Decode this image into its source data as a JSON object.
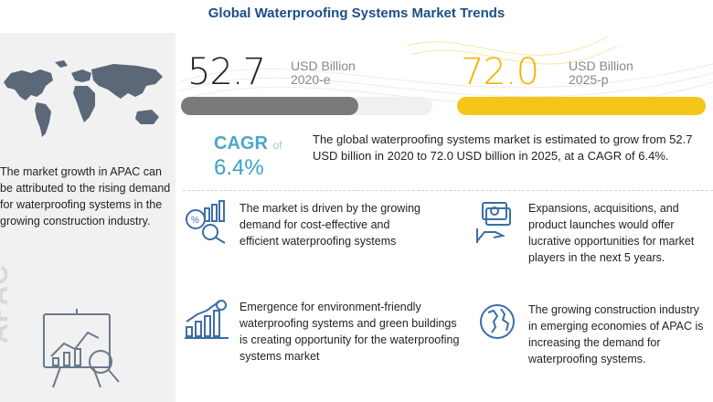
{
  "header": {
    "title": "Global Waterproofing Systems Market Trends"
  },
  "stats": {
    "base": {
      "value": "52.7",
      "unit": "USD Billion",
      "period": "2020-e"
    },
    "forecast": {
      "value": "72.0",
      "unit": "USD Billion",
      "period": "2025-p"
    }
  },
  "cagr": {
    "label": "CAGR",
    "of": "of",
    "value": "6.4%",
    "description": "The global waterproofing systems market is estimated to grow from 52.7 USD billion in 2020 to 72.0 USD billion in 2025, at a CAGR of 6.4%."
  },
  "apac": {
    "text": "The market growth in APAC can be attributed to the rising demand for waterproofing systems in the growing construction industry.",
    "watermark": "APAC"
  },
  "drivers": [
    {
      "icon": "chart-magnifier-icon",
      "text": "The market is driven by the growing demand for cost-effective and efficient waterproofing systems"
    },
    {
      "icon": "money-hand-icon",
      "text": "Expansions, acquisitions, and product launches would offer lucrative opportunities for market players in the next 5 years."
    },
    {
      "icon": "growth-bar-icon",
      "text": "Emergence for environment-friendly waterproofing systems and green buildings is creating opportunity for the waterproofing systems market"
    },
    {
      "icon": "globe-icon",
      "text": "The growing construction industry in emerging economies of APAC is increasing the demand for waterproofing systems."
    }
  ],
  "colors": {
    "title": "#1d4e89",
    "base_bar": "#7a7a7a",
    "forecast_bar": "#f5c518",
    "forecast_value": "#f2b705",
    "cagr": "#3c9fc8",
    "icon": "#3b6ea8"
  }
}
